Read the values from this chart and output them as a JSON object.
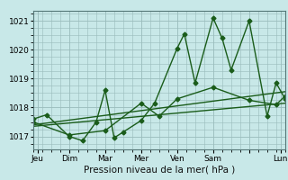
{
  "background_color": "#c8e8e8",
  "grid_color": "#99bbbb",
  "line_color": "#1a5c1a",
  "marker_style": "D",
  "marker_size": 2.5,
  "linewidth": 1.0,
  "xlim": [
    0,
    28
  ],
  "ylim": [
    1016.55,
    1021.35
  ],
  "yticks": [
    1017,
    1018,
    1019,
    1020,
    1021
  ],
  "xlabel": "Pression niveau de la mer( hPa )",
  "xlabel_fontsize": 7.5,
  "tick_fontsize": 6.5,
  "day_ticks": [
    0.5,
    4,
    8,
    12,
    16,
    20,
    24,
    27.5
  ],
  "day_labels": [
    "Jeu",
    "Dim",
    "Mar",
    "Mer",
    "Ven",
    "Sam",
    "",
    "Lun"
  ],
  "series": [
    [
      0,
      1017.6,
      1.5,
      1017.75,
      4,
      1017.0,
      5.5,
      1016.85,
      7,
      1017.5,
      8,
      1018.6,
      9,
      1016.95,
      10,
      1017.15,
      12,
      1017.55,
      13.5,
      1018.15,
      16,
      1020.05,
      16.8,
      1020.55,
      18,
      1018.85,
      20,
      1021.1,
      21,
      1020.4,
      22,
      1019.3,
      24,
      1021.0,
      26,
      1017.7,
      27,
      1018.85,
      28,
      1018.3
    ],
    [
      0,
      1017.5,
      4,
      1017.05,
      8,
      1017.2,
      12,
      1018.15,
      14,
      1017.7,
      16,
      1018.3,
      20,
      1018.7,
      24,
      1018.25,
      27,
      1018.1,
      28,
      1018.4
    ],
    [
      0,
      1017.4,
      28,
      1018.55
    ],
    [
      0,
      1017.35,
      28,
      1018.15
    ]
  ]
}
